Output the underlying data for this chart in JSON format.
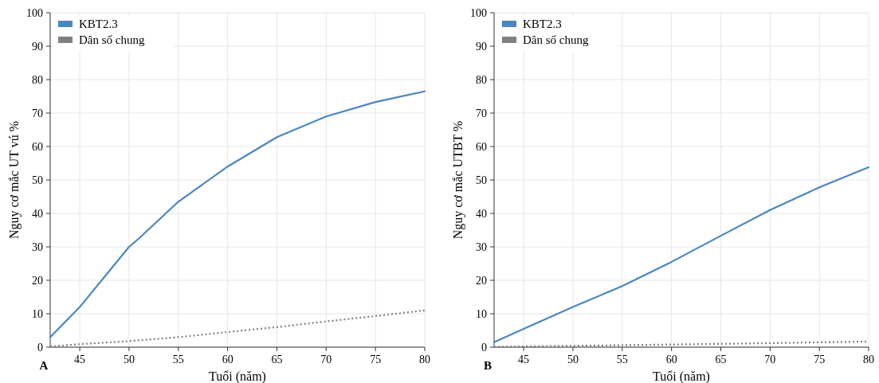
{
  "chart_data": [
    {
      "type": "line",
      "xlabel": "Tuổi (năm)",
      "ylabel": "Nguy cơ mắc UT vú %",
      "annotations": [
        "A"
      ],
      "xlim": [
        42,
        80
      ],
      "xticks": [
        45,
        50,
        55,
        60,
        65,
        70,
        75,
        80
      ],
      "ylim": [
        0,
        100
      ],
      "yticks": [
        0,
        10,
        20,
        30,
        40,
        50,
        60,
        70,
        80,
        90,
        100
      ],
      "grid": true,
      "legend": "top left",
      "series": [
        {
          "name": "KBT2.3",
          "color": "#4a86c0",
          "line_style": "solid",
          "x": [
            42,
            45,
            50,
            51,
            55,
            60,
            65,
            70,
            75,
            80
          ],
          "values": [
            3,
            12,
            30,
            32.5,
            43.5,
            54,
            62.8,
            69,
            73.3,
            76.5
          ]
        },
        {
          "name": "Dân số chung",
          "color": "#808080",
          "line_style": "dotted",
          "x": [
            42,
            45,
            50,
            55,
            60,
            65,
            70,
            75,
            80
          ],
          "values": [
            0.2,
            0.9,
            1.8,
            3,
            4.5,
            6,
            7.7,
            9.3,
            11
          ]
        }
      ]
    },
    {
      "type": "line",
      "xlabel": "Tuổi (năm)",
      "ylabel": "Nguy cơ mắc UTBT %",
      "annotations": [
        "B"
      ],
      "xlim": [
        42,
        80
      ],
      "xticks": [
        45,
        50,
        55,
        60,
        65,
        70,
        75,
        80
      ],
      "ylim": [
        0,
        100
      ],
      "yticks": [
        0,
        10,
        20,
        30,
        40,
        50,
        60,
        70,
        80,
        90,
        100
      ],
      "grid": true,
      "legend": "top left",
      "series": [
        {
          "name": "KBT2.3",
          "color": "#4a86c0",
          "line_style": "solid",
          "x": [
            42,
            45,
            50,
            55,
            60,
            65,
            70,
            75,
            80
          ],
          "values": [
            1.5,
            5.5,
            12,
            18.3,
            25.5,
            33.3,
            41,
            47.8,
            53.8
          ]
        },
        {
          "name": "Dân số chung",
          "color": "#808080",
          "line_style": "dotted",
          "x": [
            42,
            50,
            60,
            70,
            80
          ],
          "values": [
            0.1,
            0.4,
            0.8,
            1.2,
            1.7
          ]
        }
      ]
    }
  ]
}
